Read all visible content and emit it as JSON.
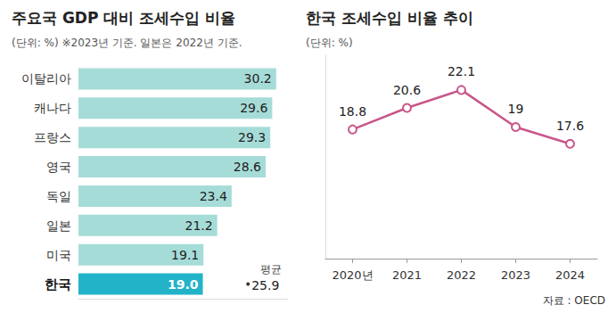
{
  "chart_data": [
    {
      "type": "bar",
      "orientation": "horizontal",
      "title": "주요국 GDP 대비 조세수입 비율",
      "subtitle": "(단위: %) ※2023년 기준. 일본은 2022년 기준.",
      "categories": [
        "이탈리아",
        "캐나다",
        "프랑스",
        "영국",
        "독일",
        "일본",
        "미국",
        "한국"
      ],
      "values": [
        30.2,
        29.6,
        29.3,
        28.6,
        23.4,
        21.2,
        19.1,
        19.0
      ],
      "value_labels": [
        "30.2",
        "29.6",
        "29.3",
        "28.6",
        "23.4",
        "21.2",
        "19.1",
        "19.0"
      ],
      "colors": [
        "#a6dcd8",
        "#a6dcd8",
        "#a6dcd8",
        "#a6dcd8",
        "#a6dcd8",
        "#a6dcd8",
        "#a6dcd8",
        "#22b3c8"
      ],
      "xlim": [
        0,
        32
      ],
      "tick_labels": false,
      "grid": false,
      "data_labels": true,
      "average": {
        "label": "평균",
        "value": 25.9
      }
    },
    {
      "type": "line",
      "title": "한국 조세수입 비율 추이",
      "subtitle": "(단위: %)",
      "categories": [
        "2020년",
        "2021",
        "2022",
        "2023",
        "2024"
      ],
      "values": [
        18.8,
        20.6,
        22.1,
        19,
        17.6
      ],
      "color": "#c8568a",
      "marker": "circle",
      "ylim": [
        8,
        25
      ],
      "tick_labels": "x",
      "grid": false,
      "data_labels": true,
      "source": "자료 : OECD"
    }
  ]
}
